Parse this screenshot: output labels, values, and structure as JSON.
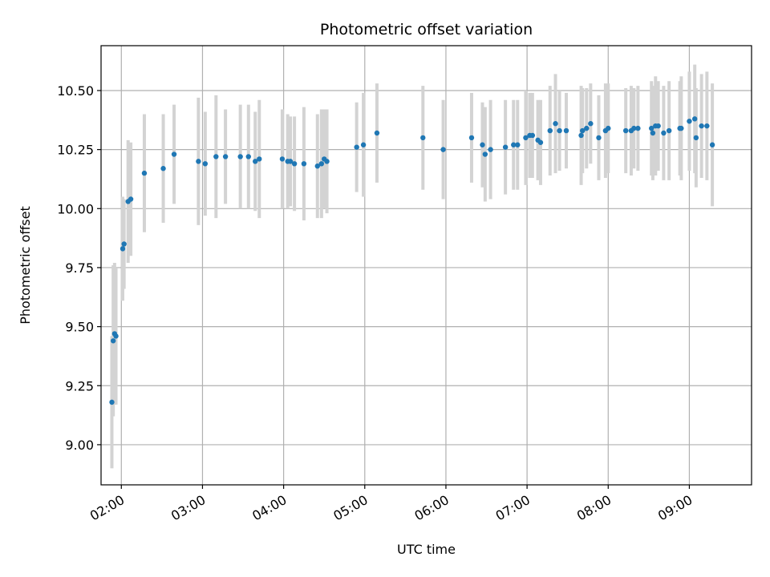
{
  "chart_data": {
    "type": "scatter",
    "title": "Photometric offset variation",
    "xlabel": "UTC time",
    "ylabel": "Photometric offset",
    "x_ticks": [
      "02:00",
      "03:00",
      "04:00",
      "05:00",
      "06:00",
      "07:00",
      "08:00",
      "09:00"
    ],
    "y_ticks": [
      "9.00",
      "9.25",
      "9.50",
      "9.75",
      "10.00",
      "10.25",
      "10.50"
    ],
    "xlim": [
      "01:45",
      "09:46"
    ],
    "ylim": [
      8.83,
      10.69
    ],
    "grid": true,
    "colors": {
      "marker": "#1f77b4",
      "errorbar": "#d3d3d3",
      "grid": "#b0b0b0"
    },
    "series": [
      {
        "x": [
          "01:53",
          "01:54",
          "01:55",
          "01:56",
          "02:01",
          "02:02",
          "02:05",
          "02:07",
          "02:17",
          "02:31",
          "02:39",
          "02:57",
          "03:02",
          "03:10",
          "03:17",
          "03:28",
          "03:34",
          "03:39",
          "03:42",
          "03:59",
          "04:03",
          "04:05",
          "04:08",
          "04:15",
          "04:25",
          "04:28",
          "04:30",
          "04:32",
          "04:54",
          "04:59",
          "05:09",
          "05:43",
          "05:58",
          "06:19",
          "06:27",
          "06:29",
          "06:33",
          "06:44",
          "06:50",
          "06:53",
          "06:59",
          "07:02",
          "07:04",
          "07:08",
          "07:10",
          "07:17",
          "07:21",
          "07:24",
          "07:29",
          "07:40",
          "07:41",
          "07:44",
          "07:47",
          "07:53",
          "07:58",
          "08:00",
          "08:13",
          "08:17",
          "08:19",
          "08:22",
          "08:32",
          "08:33",
          "08:35",
          "08:37",
          "08:41",
          "08:45",
          "08:53",
          "08:54",
          "09:00",
          "09:04",
          "09:05",
          "09:09",
          "09:13",
          "09:17"
        ],
        "y": [
          9.18,
          9.44,
          9.47,
          9.46,
          9.83,
          9.85,
          10.03,
          10.04,
          10.15,
          10.17,
          10.23,
          10.2,
          10.19,
          10.22,
          10.22,
          10.22,
          10.22,
          10.2,
          10.21,
          10.21,
          10.2,
          10.2,
          10.19,
          10.19,
          10.18,
          10.19,
          10.21,
          10.2,
          10.26,
          10.27,
          10.32,
          10.3,
          10.25,
          10.3,
          10.27,
          10.23,
          10.25,
          10.26,
          10.27,
          10.27,
          10.3,
          10.31,
          10.31,
          10.29,
          10.28,
          10.33,
          10.36,
          10.33,
          10.33,
          10.31,
          10.33,
          10.34,
          10.36,
          10.3,
          10.33,
          10.34,
          10.33,
          10.33,
          10.34,
          10.34,
          10.34,
          10.32,
          10.35,
          10.35,
          10.32,
          10.33,
          10.34,
          10.34,
          10.37,
          10.38,
          10.3,
          10.35,
          10.35,
          10.27
        ],
        "err": [
          0.28,
          0.32,
          0.3,
          0.29,
          0.22,
          0.19,
          0.26,
          0.24,
          0.25,
          0.23,
          0.21,
          0.27,
          0.22,
          0.26,
          0.2,
          0.22,
          0.22,
          0.21,
          0.25,
          0.21,
          0.2,
          0.19,
          0.2,
          0.24,
          0.22,
          0.23,
          0.21,
          0.22,
          0.19,
          0.22,
          0.21,
          0.22,
          0.21,
          0.19,
          0.18,
          0.2,
          0.21,
          0.2,
          0.19,
          0.19,
          0.2,
          0.18,
          0.18,
          0.17,
          0.18,
          0.19,
          0.21,
          0.17,
          0.16,
          0.21,
          0.18,
          0.17,
          0.17,
          0.18,
          0.2,
          0.19,
          0.18,
          0.19,
          0.17,
          0.18,
          0.2,
          0.2,
          0.21,
          0.19,
          0.2,
          0.21,
          0.2,
          0.22,
          0.21,
          0.23,
          0.21,
          0.22,
          0.23,
          0.26
        ]
      }
    ]
  }
}
